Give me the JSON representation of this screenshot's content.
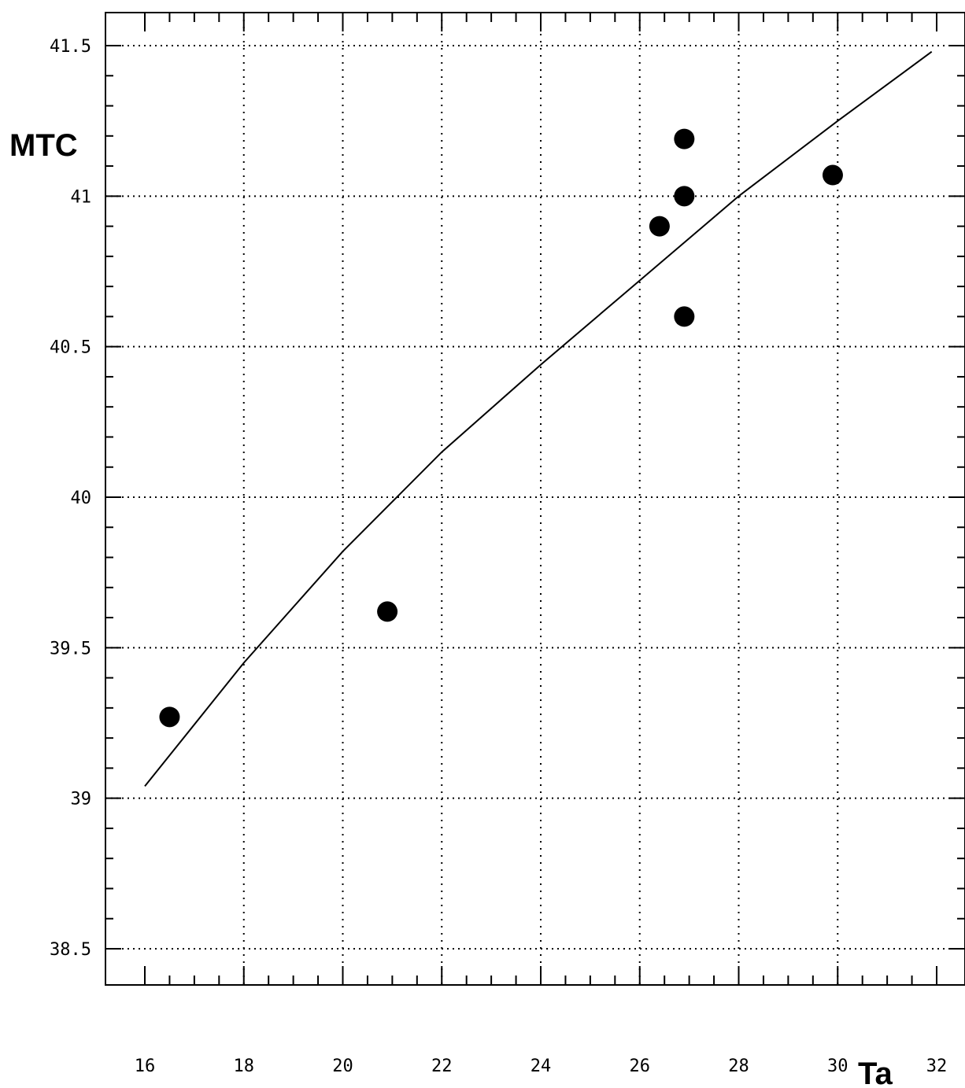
{
  "chart_data": {
    "type": "scatter",
    "title": "",
    "xlabel": "Ta",
    "ylabel": "MTC",
    "xlim": [
      16,
      32
    ],
    "ylim": [
      38.5,
      41.5
    ],
    "x_ticks": [
      "16",
      "18",
      "20",
      "22",
      "24",
      "26",
      "28",
      "30",
      "32"
    ],
    "y_ticks": [
      "38.5",
      "39",
      "39.5",
      "40",
      "40.5",
      "41",
      "41.5"
    ],
    "grid": true,
    "series": [
      {
        "points": [
          {
            "x": 16.5,
            "y": 39.27
          },
          {
            "x": 20.9,
            "y": 39.62
          },
          {
            "x": 26.4,
            "y": 40.9
          },
          {
            "x": 26.9,
            "y": 41.19
          },
          {
            "x": 26.9,
            "y": 41.0
          },
          {
            "x": 26.9,
            "y": 40.6
          },
          {
            "x": 29.9,
            "y": 41.07
          }
        ]
      }
    ],
    "trend_line": [
      {
        "x": 16.0,
        "y": 39.04
      },
      {
        "x": 18.0,
        "y": 39.45
      },
      {
        "x": 20.0,
        "y": 39.82
      },
      {
        "x": 22.0,
        "y": 40.15
      },
      {
        "x": 24.0,
        "y": 40.44
      },
      {
        "x": 26.0,
        "y": 40.72
      },
      {
        "x": 28.0,
        "y": 41.0
      },
      {
        "x": 30.0,
        "y": 41.25
      },
      {
        "x": 31.9,
        "y": 41.48
      }
    ],
    "colors": {
      "marker": "#000000",
      "line": "#000000",
      "grid": "#000000"
    }
  }
}
